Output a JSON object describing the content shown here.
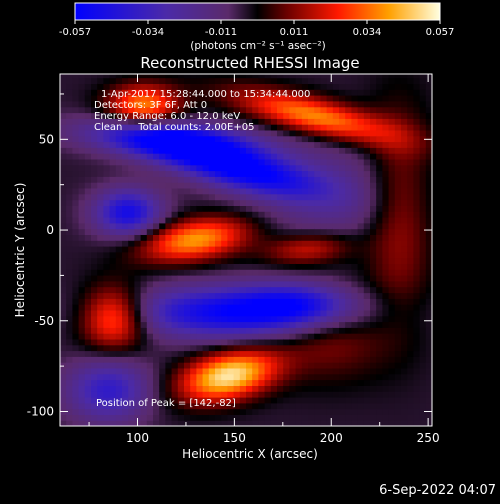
{
  "chart_data": {
    "type": "heatmap",
    "title": "Reconstructed RHESSI Image",
    "xlabel": "Heliocentric X (arcsec)",
    "ylabel": "Heliocentric Y (arcsec)",
    "xlim": [
      60,
      252
    ],
    "ylim": [
      -108,
      86
    ],
    "x_ticks": [
      100,
      150,
      200,
      250
    ],
    "y_ticks": [
      -100,
      -50,
      0,
      50
    ],
    "colorbar": {
      "ticks": [
        "-0.057",
        "-0.034",
        "-0.011",
        "0.011",
        "0.034",
        "0.057"
      ],
      "range": [
        -0.057,
        0.057
      ],
      "unit_label": "(photons cm⁻² s⁻¹ asec⁻²)"
    },
    "info_lines": [
      "1-Apr-2017 15:28:44.000 to 15:34:44.000",
      "Detectors: 3F 6F, Att 0",
      "Energy Range: 6.0 - 12.0 keV",
      "Clean     Total counts: 2.00E+05"
    ],
    "peak_label": "Position of Peak = [142,-82]",
    "footer_date": "6-Sep-2022 04:07",
    "sources": [
      {
        "x": 147,
        "y": -80,
        "amp": 0.057,
        "sx": 18,
        "sy": 9,
        "angle": 15
      },
      {
        "x": 130,
        "y": -5,
        "amp": 0.045,
        "sx": 20,
        "sy": 8,
        "angle": 10
      },
      {
        "x": 88,
        "y": -48,
        "amp": 0.044,
        "sx": 12,
        "sy": 12,
        "angle": 0
      },
      {
        "x": 192,
        "y": 63,
        "amp": 0.043,
        "sx": 30,
        "sy": 7,
        "angle": -15
      },
      {
        "x": 103,
        "y": 69,
        "amp": 0.042,
        "sx": 13,
        "sy": 8,
        "angle": 0
      },
      {
        "x": 188,
        "y": -10,
        "amp": 0.025,
        "sx": 16,
        "sy": 6,
        "angle": 5
      },
      {
        "x": 200,
        "y": -55,
        "amp": 0.018,
        "sx": 20,
        "sy": 18,
        "angle": 0
      },
      {
        "x": 235,
        "y": 10,
        "amp": 0.02,
        "sx": 12,
        "sy": 40,
        "angle": 0
      },
      {
        "x": 118,
        "y": 50,
        "amp": -0.05,
        "sx": 30,
        "sy": 7,
        "angle": -5
      },
      {
        "x": 150,
        "y": 35,
        "amp": -0.055,
        "sx": 30,
        "sy": 8,
        "angle": -15
      },
      {
        "x": 95,
        "y": 10,
        "amp": -0.045,
        "sx": 12,
        "sy": 9,
        "angle": 0
      },
      {
        "x": 150,
        "y": -45,
        "amp": -0.05,
        "sx": 40,
        "sy": 10,
        "angle": 0
      },
      {
        "x": 185,
        "y": -40,
        "amp": -0.03,
        "sx": 20,
        "sy": 8,
        "angle": 0
      },
      {
        "x": 85,
        "y": -88,
        "amp": -0.035,
        "sx": 15,
        "sy": 12,
        "angle": 0
      },
      {
        "x": 200,
        "y": 20,
        "amp": -0.015,
        "sx": 30,
        "sy": 20,
        "angle": 0
      }
    ]
  }
}
